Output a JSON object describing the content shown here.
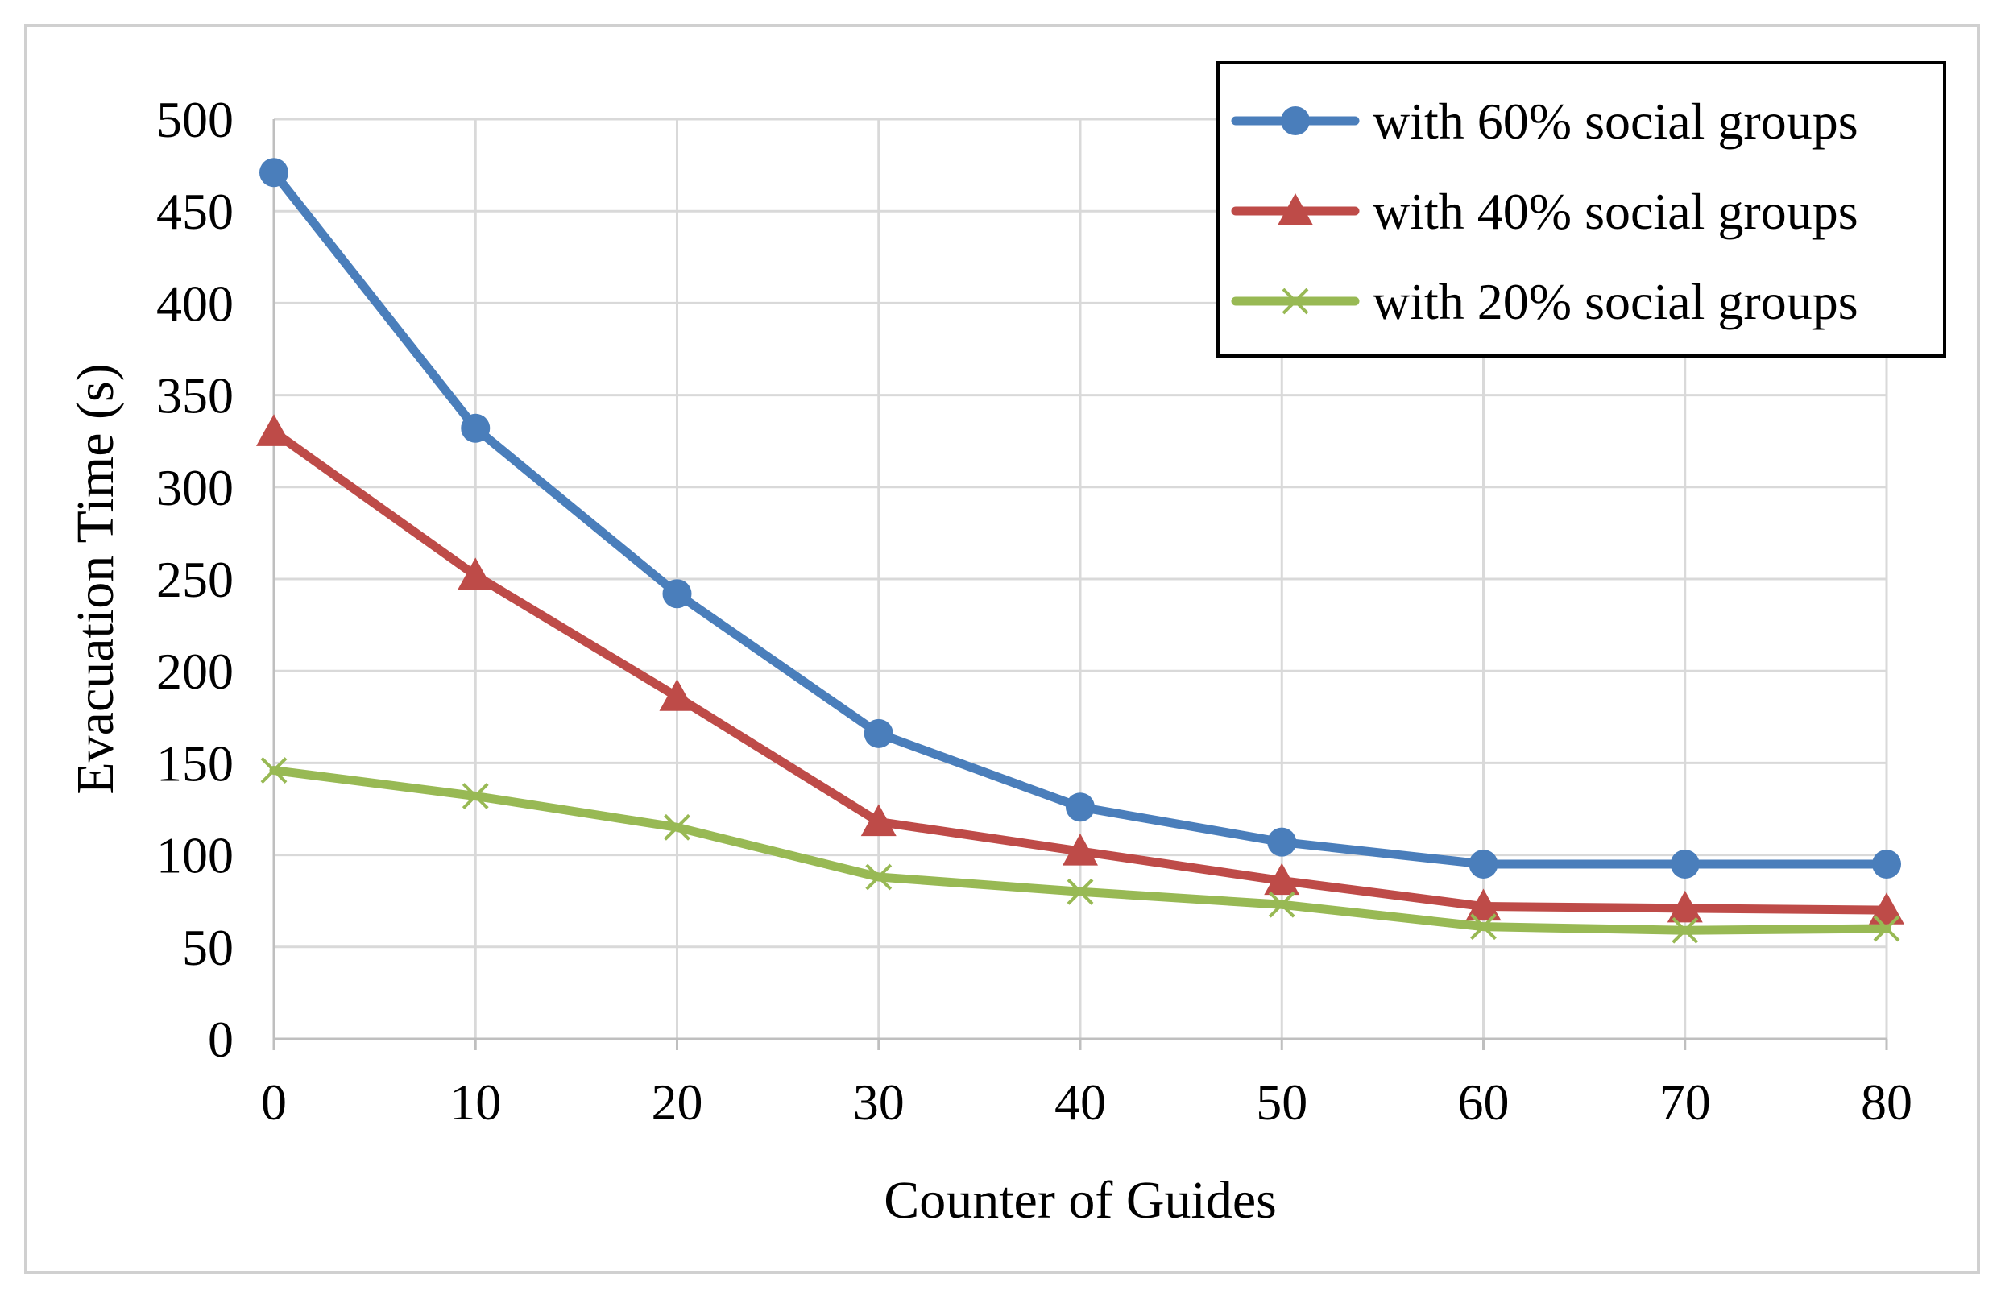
{
  "chart_data": {
    "type": "line",
    "title": "",
    "xlabel": "Counter of Guides",
    "ylabel": "Evacuation Time (s)",
    "x": [
      0,
      10,
      20,
      30,
      40,
      50,
      60,
      70,
      80
    ],
    "xlim": [
      0,
      80
    ],
    "ylim": [
      0,
      500
    ],
    "x_ticks": [
      "0",
      "10",
      "20",
      "30",
      "40",
      "50",
      "60",
      "70",
      "80"
    ],
    "y_ticks": [
      "0",
      "50",
      "100",
      "150",
      "200",
      "250",
      "300",
      "350",
      "400",
      "450",
      "500"
    ],
    "grid": true,
    "legend_position": "top-right",
    "series": [
      {
        "name": "with 60% social groups",
        "color": "#4a7ebb",
        "marker": "circle",
        "values": [
          471,
          332,
          242,
          166,
          126,
          107,
          95,
          95,
          95
        ]
      },
      {
        "name": "with 40% social groups",
        "color": "#be4b48",
        "marker": "triangle",
        "values": [
          330,
          252,
          186,
          118,
          102,
          86,
          72,
          71,
          70
        ]
      },
      {
        "name": "with 20% social groups",
        "color": "#98b954",
        "marker": "x",
        "values": [
          146,
          132,
          115,
          88,
          80,
          73,
          61,
          59,
          60
        ]
      }
    ]
  }
}
